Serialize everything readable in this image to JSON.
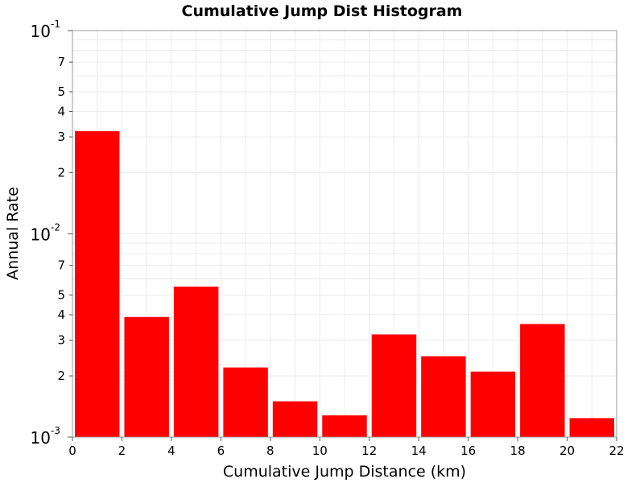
{
  "chart_data": {
    "type": "bar",
    "title": "Cumulative Jump Dist Histogram",
    "xlabel": "Cumulative Jump Distance (km)",
    "ylabel": "Annual Rate",
    "xlim": [
      0,
      22
    ],
    "ylim": [
      0.001,
      0.1
    ],
    "yscale": "log",
    "grid": true,
    "bar_color": "#ff0000",
    "x_ticks": [
      "0",
      "2",
      "4",
      "6",
      "8",
      "10",
      "12",
      "14",
      "16",
      "18",
      "20",
      "22"
    ],
    "y_major_ticks": [
      {
        "value": 0.001,
        "base": "10",
        "exp": "-3"
      },
      {
        "value": 0.01,
        "base": "10",
        "exp": "-2"
      },
      {
        "value": 0.1,
        "base": "10",
        "exp": "-1"
      }
    ],
    "y_minor_ticks": [
      {
        "value": 0.002,
        "label": "2"
      },
      {
        "value": 0.003,
        "label": "3"
      },
      {
        "value": 0.004,
        "label": "4"
      },
      {
        "value": 0.005,
        "label": "5"
      },
      {
        "value": 0.007,
        "label": "7"
      },
      {
        "value": 0.02,
        "label": "2"
      },
      {
        "value": 0.03,
        "label": "3"
      },
      {
        "value": 0.04,
        "label": "4"
      },
      {
        "value": 0.05,
        "label": "5"
      },
      {
        "value": 0.07,
        "label": "7"
      }
    ],
    "bins": [
      {
        "x0": 0,
        "x1": 2,
        "value": 0.032
      },
      {
        "x0": 2,
        "x1": 4,
        "value": 0.0039
      },
      {
        "x0": 4,
        "x1": 6,
        "value": 0.0055
      },
      {
        "x0": 6,
        "x1": 8,
        "value": 0.0022
      },
      {
        "x0": 8,
        "x1": 10,
        "value": 0.0015
      },
      {
        "x0": 10,
        "x1": 12,
        "value": 0.00128
      },
      {
        "x0": 12,
        "x1": 14,
        "value": 0.0032
      },
      {
        "x0": 14,
        "x1": 16,
        "value": 0.0025
      },
      {
        "x0": 16,
        "x1": 18,
        "value": 0.0021
      },
      {
        "x0": 18,
        "x1": 20,
        "value": 0.0036
      },
      {
        "x0": 20,
        "x1": 22,
        "value": 0.00124
      }
    ]
  }
}
